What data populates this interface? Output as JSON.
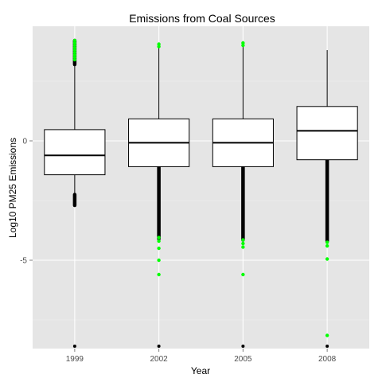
{
  "chart_data": {
    "type": "box",
    "title": "Emissions from Coal Sources",
    "xlabel": "Year",
    "ylabel": "Log10 PM25 Emissions",
    "categories": [
      "1999",
      "2002",
      "2005",
      "2008"
    ],
    "y_ticks": [
      -5,
      0
    ],
    "ylim": [
      -8.7,
      4.8
    ],
    "grid": true,
    "boxes": [
      {
        "category": "1999",
        "q1": -1.42,
        "median": -0.61,
        "q3": 0.47,
        "whisker_low": -2.25,
        "whisker_high": 3.2,
        "outlier_low_start": -2.7,
        "outlier_high_end": 4.2,
        "min": -8.6
      },
      {
        "category": "2002",
        "q1": -1.08,
        "median": -0.08,
        "q3": 0.92,
        "whisker_low": -1.1,
        "whisker_high": 4.05,
        "outlier_low_start": -4.1,
        "outlier_high_end": 4.05,
        "min": -8.6
      },
      {
        "category": "2005",
        "q1": -1.08,
        "median": -0.08,
        "q3": 0.92,
        "whisker_low": -1.1,
        "whisker_high": 4.1,
        "outlier_low_start": -4.15,
        "outlier_high_end": 4.1,
        "min": -8.6
      },
      {
        "category": "2008",
        "q1": -0.79,
        "median": 0.42,
        "q3": 1.44,
        "whisker_low": -0.8,
        "whisker_high": 3.8,
        "outlier_low_start": -4.2,
        "outlier_high_end": 3.8,
        "min": -8.6
      }
    ],
    "highlight_points": [
      {
        "category": "1999",
        "values": [
          4.2,
          4.1,
          4.0,
          3.9,
          3.8,
          3.7,
          3.6,
          3.5,
          3.4
        ]
      },
      {
        "category": "2002",
        "values": [
          4.05,
          3.95,
          -4.05,
          -4.2,
          -4.5,
          -5.0,
          -5.6
        ]
      },
      {
        "category": "2005",
        "values": [
          4.1,
          4.0,
          -4.15,
          -4.3,
          -4.45,
          -5.6
        ]
      },
      {
        "category": "2008",
        "values": [
          -4.25,
          -4.4,
          -4.95,
          -8.15
        ]
      }
    ],
    "colors": {
      "panel": "#e5e5e5",
      "grid_major": "#ffffff",
      "grid_minor": "#f2f2f2",
      "box_fill": "#ffffff",
      "box_stroke": "#000000",
      "outlier": "#000000",
      "highlight": "#00ff00"
    }
  }
}
